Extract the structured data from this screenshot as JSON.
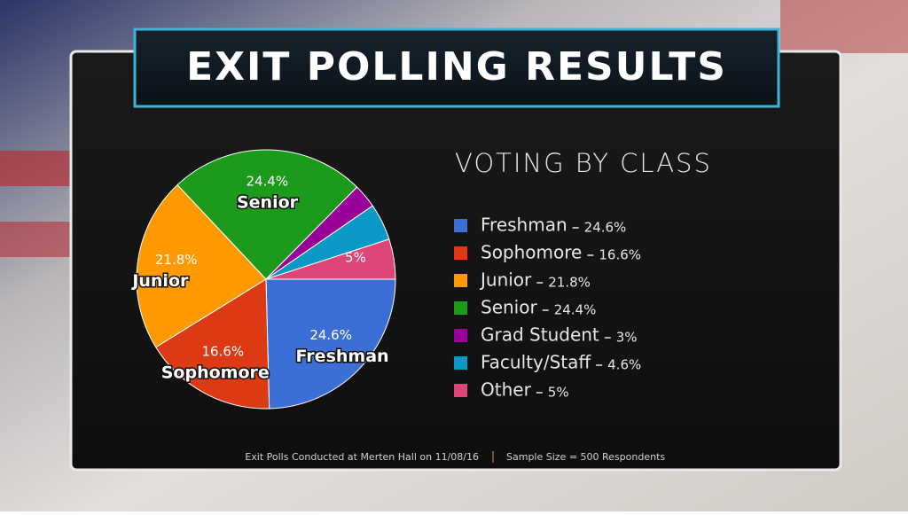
{
  "header": {
    "title": "EXIT POLLING RESULTS"
  },
  "chart_data": {
    "type": "pie",
    "title": "VOTING BY CLASS",
    "categories": [
      "Freshman",
      "Sophomore",
      "Junior",
      "Senior",
      "Grad Student",
      "Faculty/Staff",
      "Other"
    ],
    "values": [
      24.6,
      16.6,
      21.8,
      24.4,
      3,
      4.6,
      5
    ],
    "value_labels": [
      "24.6%",
      "16.6%",
      "21.8%",
      "24.4%",
      "3%",
      "4.6%",
      "5%"
    ],
    "colors": [
      "#3b6fd6",
      "#dc3a14",
      "#ff9900",
      "#1c9a1c",
      "#990099",
      "#0a99c6",
      "#dd4477"
    ]
  },
  "footer": {
    "notes": [
      "Exit Polls Conducted at Merten Hall on 11/08/16",
      "Sample Size = 500 Respondents"
    ]
  }
}
